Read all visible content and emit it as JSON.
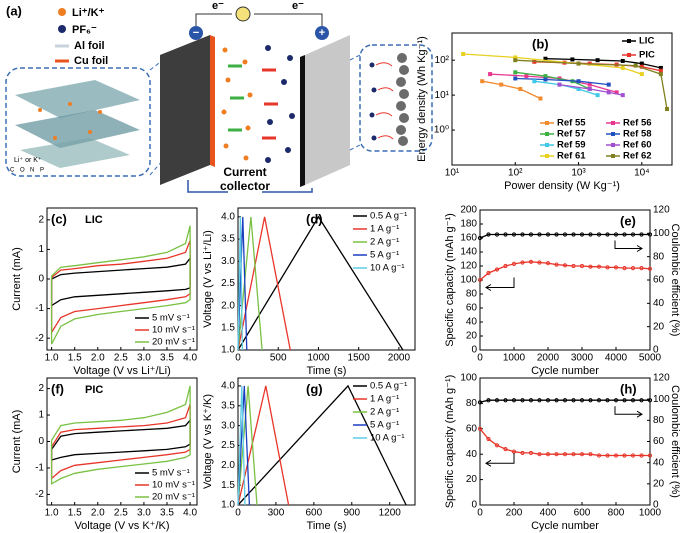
{
  "diagram": {
    "label": "(a)",
    "ion_labels": [
      "Li⁺/K⁺",
      "PF₆⁻",
      "Al foil",
      "Cu foil"
    ],
    "electron_labels": [
      "e⁻",
      "e⁻"
    ],
    "electrode_signs": [
      "−",
      "+"
    ],
    "collector_label": [
      "Current",
      "collector"
    ],
    "inset_labels": [
      "Li⁺ or K⁺",
      "C",
      "O",
      "N",
      "P"
    ]
  },
  "chart_data": [
    {
      "type": "line",
      "label": "(b)",
      "xlabel": "Power density (W Kg⁻¹)",
      "ylabel": "Energy density (Wh Kg⁻¹)",
      "xscale": "log",
      "yscale": "log",
      "markers": "square",
      "legend": "upper right",
      "xlim": [
        10,
        30000
      ],
      "ylim": [
        0.1,
        600
      ],
      "xticks": [
        {
          "value": 10,
          "label": "10¹"
        },
        {
          "value": 100,
          "label": "10²"
        },
        {
          "value": 1000,
          "label": "10³"
        },
        {
          "value": 10000,
          "label": "10⁴"
        }
      ],
      "yticks": [
        {
          "value": 1,
          "label": "10⁰"
        },
        {
          "value": 10,
          "label": "10¹"
        },
        {
          "value": 100,
          "label": "10²"
        }
      ],
      "series": [
        {
          "name": "LIC",
          "color": "#000000",
          "x": [
            300,
            800,
            2000,
            5000,
            10000,
            20000
          ],
          "values": [
            110,
            105,
            100,
            95,
            80,
            60
          ]
        },
        {
          "name": "PIC",
          "color": "#e8352a",
          "x": [
            200,
            600,
            1500,
            4000,
            10000,
            20000
          ],
          "values": [
            90,
            85,
            80,
            75,
            65,
            50
          ]
        },
        {
          "name": "Ref 55",
          "color": "#f28a2e",
          "x": [
            30,
            60,
            120,
            250
          ],
          "values": [
            25,
            20,
            15,
            8
          ]
        },
        {
          "name": "Ref 56",
          "color": "#e8368f",
          "x": [
            40,
            150,
            500,
            1500,
            4000
          ],
          "values": [
            40,
            35,
            30,
            20,
            12
          ]
        },
        {
          "name": "Ref 57",
          "color": "#3cb043",
          "x": [
            100,
            300,
            800,
            1500
          ],
          "values": [
            45,
            35,
            25,
            15
          ]
        },
        {
          "name": "Ref 58",
          "color": "#2050c0",
          "x": [
            100,
            300,
            1000,
            3000
          ],
          "values": [
            30,
            28,
            25,
            20
          ]
        },
        {
          "name": "Ref 59",
          "color": "#40c8e8",
          "x": [
            200,
            500,
            1000,
            2000
          ],
          "values": [
            25,
            20,
            15,
            10
          ]
        },
        {
          "name": "Ref 60",
          "color": "#a050d0",
          "x": [
            500,
            1500,
            3000,
            5000
          ],
          "values": [
            20,
            15,
            12,
            10
          ]
        },
        {
          "name": "Ref 61",
          "color": "#e8d020",
          "x": [
            15,
            100,
            1000,
            5000,
            10000
          ],
          "values": [
            150,
            120,
            80,
            60,
            40
          ]
        },
        {
          "name": "Ref 62",
          "color": "#808020",
          "x": [
            100,
            1000,
            8000,
            20000,
            25000
          ],
          "values": [
            100,
            80,
            70,
            40,
            4
          ]
        }
      ]
    },
    {
      "type": "line",
      "label": "(c)",
      "annotation": "LIC",
      "xlabel": "Voltage (V vs Li⁺/Li)",
      "ylabel": "Current (mA)",
      "legend": "lower right",
      "xlim": [
        0.9,
        4.15
      ],
      "ylim": [
        -2.4,
        2.4
      ],
      "xticks": [
        {
          "value": 1,
          "label": "1.0"
        },
        1.5,
        {
          "value": 2,
          "label": "2.0"
        },
        2.5,
        {
          "value": 3,
          "label": "3.0"
        },
        3.5,
        {
          "value": 4,
          "label": "4.0"
        }
      ],
      "yticks": [
        -2,
        -1,
        0,
        1,
        2
      ],
      "x": [
        1.0,
        1.2,
        1.5,
        2.0,
        2.5,
        3.0,
        3.5,
        3.9,
        4.0,
        4.0,
        3.9,
        3.5,
        3.0,
        2.5,
        2.0,
        1.5,
        1.2,
        1.0,
        1.0
      ],
      "series": [
        {
          "name": "5 mV s⁻¹",
          "color": "#000000",
          "values": [
            0.0,
            0.15,
            0.2,
            0.25,
            0.3,
            0.35,
            0.4,
            0.5,
            0.7,
            -0.3,
            -0.35,
            -0.4,
            -0.45,
            -0.5,
            -0.55,
            -0.6,
            -0.7,
            -0.9,
            0.0
          ]
        },
        {
          "name": "10 mV s⁻¹",
          "color": "#e8352a",
          "values": [
            0.05,
            0.3,
            0.35,
            0.45,
            0.5,
            0.6,
            0.7,
            0.9,
            1.3,
            -0.5,
            -0.6,
            -0.7,
            -0.8,
            -0.9,
            -1.0,
            -1.1,
            -1.3,
            -1.8,
            0.05
          ]
        },
        {
          "name": "20 mV s⁻¹",
          "color": "#7ac143",
          "values": [
            0.1,
            0.4,
            0.45,
            0.55,
            0.65,
            0.75,
            0.9,
            1.2,
            1.8,
            -0.7,
            -0.8,
            -0.9,
            -1.0,
            -1.1,
            -1.2,
            -1.35,
            -1.6,
            -2.2,
            0.1
          ]
        }
      ]
    },
    {
      "type": "line",
      "label": "(d)",
      "xlabel": "Time (s)",
      "ylabel": "Voltage (V vs Li⁺/Li)",
      "legend": "upper right",
      "xlim": [
        0,
        2200
      ],
      "ylim": [
        1.0,
        4.2
      ],
      "xticks": [
        0,
        500,
        1000,
        1500,
        2000
      ],
      "yticks": [
        {
          "value": 1,
          "label": "1.0"
        },
        1.5,
        {
          "value": 2,
          "label": "2.0"
        },
        2.5,
        {
          "value": 3,
          "label": "3.0"
        },
        3.5,
        {
          "value": 4,
          "label": "4.0"
        }
      ],
      "series": [
        {
          "name": "0.5 A g⁻¹",
          "color": "#000000",
          "x": [
            0,
            1000,
            2050
          ],
          "values": [
            1.0,
            4.0,
            1.0
          ]
        },
        {
          "name": "1 A g⁻¹",
          "color": "#e8352a",
          "x": [
            0,
            330,
            650
          ],
          "values": [
            1.0,
            4.0,
            1.0
          ]
        },
        {
          "name": "2 A g⁻¹",
          "color": "#7ac143",
          "x": [
            0,
            160,
            300
          ],
          "values": [
            1.0,
            4.0,
            1.0
          ]
        },
        {
          "name": "5 A g⁻¹",
          "color": "#1a3fbf",
          "x": [
            0,
            60,
            110
          ],
          "values": [
            1.0,
            4.0,
            1.0
          ]
        },
        {
          "name": "10 A g⁻¹",
          "color": "#5fcde4",
          "x": [
            0,
            30,
            55
          ],
          "values": [
            1.0,
            4.0,
            1.0
          ]
        }
      ]
    },
    {
      "type": "line",
      "label": "(e)",
      "xlabel": "Cycle number",
      "ylabel": "Specific capacity (mAh g⁻¹)",
      "y2label": "Coulombic efficient (%)",
      "markers": "circle",
      "xlim": [
        0,
        5000
      ],
      "ylim": [
        0,
        200
      ],
      "y2lim": [
        0,
        120
      ],
      "xticks": [
        0,
        1000,
        2000,
        3000,
        4000,
        5000
      ],
      "yticks": [
        0,
        20,
        40,
        60,
        80,
        100,
        120,
        140,
        160,
        180,
        200
      ],
      "y2ticks": [
        0,
        20,
        40,
        60,
        80,
        100,
        120
      ],
      "x": [
        0,
        250,
        500,
        750,
        1000,
        1250,
        1500,
        1750,
        2000,
        2250,
        2500,
        2750,
        3000,
        3250,
        3500,
        3750,
        4000,
        4250,
        4500,
        4750,
        5000
      ],
      "series": [
        {
          "name": "Specific capacity",
          "color": "#e8352a",
          "values": [
            100,
            110,
            115,
            120,
            123,
            125,
            126,
            125,
            124,
            122,
            121,
            120,
            120,
            119,
            119,
            118,
            118,
            117,
            117,
            117,
            116
          ]
        },
        {
          "name": "Coulombic efficiency",
          "color": "#000000",
          "axis": "y2",
          "values": [
            96,
            99,
            99,
            99,
            99,
            99,
            99,
            99,
            99,
            99,
            99,
            99,
            99,
            99,
            99,
            99,
            99,
            99,
            99,
            99,
            99
          ]
        }
      ]
    },
    {
      "type": "line",
      "label": "(f)",
      "annotation": "PIC",
      "xlabel": "Voltage (V vs K⁺/K)",
      "ylabel": "Current (mA)",
      "legend": "lower right",
      "xlim": [
        0.9,
        4.15
      ],
      "ylim": [
        -2.4,
        2.4
      ],
      "xticks": [
        {
          "value": 1,
          "label": "1.0"
        },
        1.5,
        {
          "value": 2,
          "label": "2.0"
        },
        2.5,
        {
          "value": 3,
          "label": "3.0"
        },
        3.5,
        {
          "value": 4,
          "label": "4.0"
        }
      ],
      "yticks": [
        -2,
        -1,
        0,
        1,
        2
      ],
      "x": [
        1.0,
        1.2,
        1.5,
        2.0,
        2.5,
        3.0,
        3.5,
        3.9,
        4.0,
        4.0,
        3.9,
        3.5,
        3.0,
        2.5,
        2.0,
        1.5,
        1.2,
        1.0,
        1.0
      ],
      "series": [
        {
          "name": "5 mV s⁻¹",
          "color": "#000000",
          "values": [
            -0.3,
            0.2,
            0.3,
            0.35,
            0.4,
            0.45,
            0.5,
            0.6,
            0.8,
            -0.1,
            -0.2,
            -0.3,
            -0.35,
            -0.4,
            -0.45,
            -0.5,
            -0.6,
            -0.7,
            -0.3
          ]
        },
        {
          "name": "10 mV s⁻¹",
          "color": "#e8352a",
          "values": [
            -0.2,
            0.35,
            0.45,
            0.5,
            0.55,
            0.6,
            0.7,
            0.9,
            1.4,
            -0.3,
            -0.4,
            -0.5,
            -0.6,
            -0.7,
            -0.8,
            -0.9,
            -1.1,
            -1.4,
            -0.2
          ]
        },
        {
          "name": "20 mV s⁻¹",
          "color": "#7ac143",
          "values": [
            0.05,
            0.6,
            0.7,
            0.75,
            0.8,
            0.9,
            1.1,
            1.4,
            2.1,
            -0.5,
            -0.6,
            -0.75,
            -0.85,
            -0.95,
            -1.05,
            -1.2,
            -1.4,
            -1.6,
            0.05
          ]
        }
      ]
    },
    {
      "type": "line",
      "label": "(g)",
      "xlabel": "Time (s)",
      "ylabel": "Voltage (V vs K⁺/K)",
      "legend": "upper right",
      "xlim": [
        0,
        1400
      ],
      "ylim": [
        1.0,
        4.2
      ],
      "xticks": [
        0,
        300,
        600,
        900,
        1200
      ],
      "yticks": [
        {
          "value": 1,
          "label": "1.0"
        },
        1.5,
        {
          "value": 2,
          "label": "2.0"
        },
        2.5,
        {
          "value": 3,
          "label": "3.0"
        },
        3.5,
        {
          "value": 4,
          "label": "4.0"
        }
      ],
      "series": [
        {
          "name": "0.5 A g⁻¹",
          "color": "#000000",
          "x": [
            0,
            870,
            1330
          ],
          "values": [
            1.0,
            4.0,
            1.0
          ]
        },
        {
          "name": "1 A g⁻¹",
          "color": "#e8352a",
          "x": [
            0,
            220,
            400
          ],
          "values": [
            1.0,
            4.0,
            1.0
          ]
        },
        {
          "name": "2 A g⁻¹",
          "color": "#7ac143",
          "x": [
            0,
            80,
            150
          ],
          "values": [
            1.0,
            4.0,
            1.0
          ]
        },
        {
          "name": "5 A g⁻¹",
          "color": "#1a3fbf",
          "x": [
            0,
            50,
            90
          ],
          "values": [
            1.0,
            4.0,
            1.0
          ]
        },
        {
          "name": "10 A g⁻¹",
          "color": "#5fcde4",
          "x": [
            0,
            30,
            55
          ],
          "values": [
            1.0,
            4.0,
            1.0
          ]
        }
      ]
    },
    {
      "type": "line",
      "label": "(h)",
      "xlabel": "Cycle number",
      "ylabel": "Specific capacity (mAh g⁻¹)",
      "y2label": "Coulombic efficient (%)",
      "markers": "circle",
      "xlim": [
        0,
        1000
      ],
      "ylim": [
        0,
        100
      ],
      "y2lim": [
        0,
        120
      ],
      "xticks": [
        0,
        200,
        400,
        600,
        800,
        1000
      ],
      "yticks": [
        0,
        20,
        40,
        60,
        80,
        100
      ],
      "y2ticks": [
        0,
        20,
        40,
        60,
        80,
        100,
        120
      ],
      "x": [
        0,
        50,
        100,
        150,
        200,
        250,
        300,
        350,
        400,
        450,
        500,
        550,
        600,
        650,
        700,
        750,
        800,
        850,
        900,
        950,
        1000
      ],
      "series": [
        {
          "name": "Specific capacity",
          "color": "#e8352a",
          "values": [
            60,
            52,
            47,
            44,
            42,
            41,
            41,
            40,
            40,
            40,
            40,
            40,
            40,
            40,
            39,
            39,
            39,
            39,
            39,
            39,
            39
          ]
        },
        {
          "name": "Coulombic efficiency",
          "color": "#000000",
          "axis": "y2",
          "values": [
            97,
            99,
            99,
            99,
            99,
            99,
            99,
            99,
            99,
            99,
            99,
            99,
            99,
            99,
            99,
            99,
            99,
            99,
            99,
            99,
            99
          ]
        }
      ]
    }
  ]
}
